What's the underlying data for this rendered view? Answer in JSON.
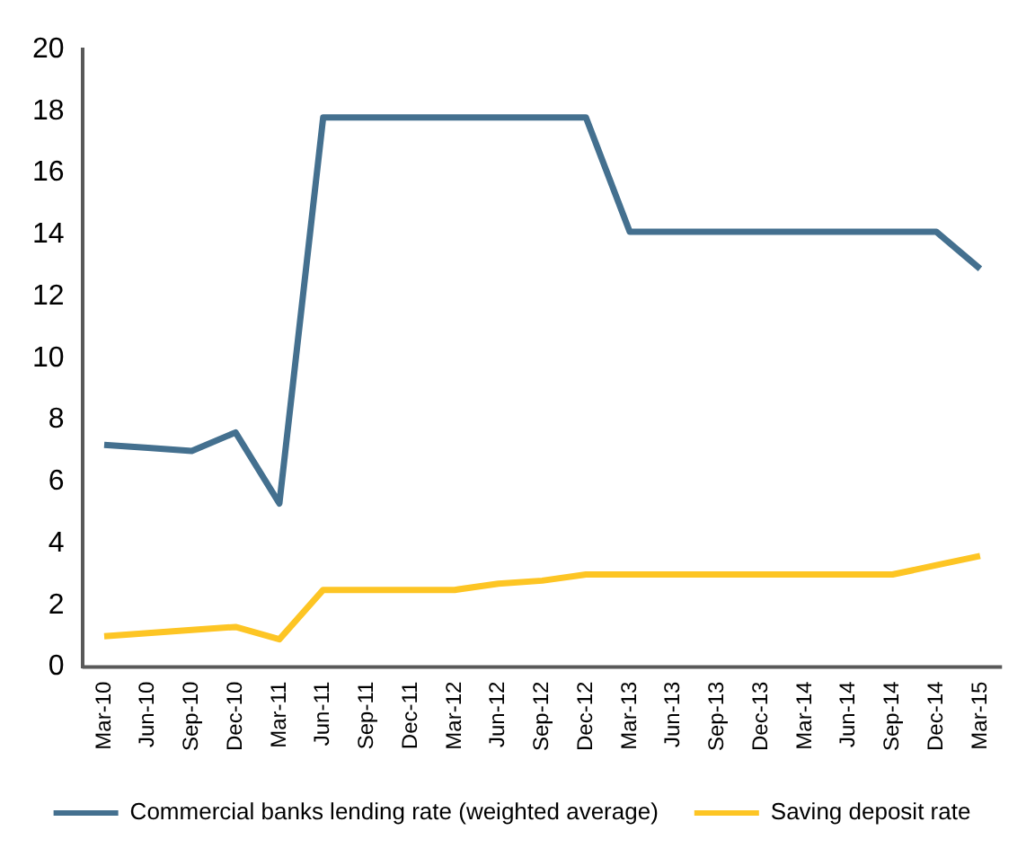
{
  "chart_data": {
    "type": "line",
    "categories": [
      "Mar-10",
      "Jun-10",
      "Sep-10",
      "Dec-10",
      "Mar-11",
      "Jun-11",
      "Sep-11",
      "Dec-11",
      "Mar-12",
      "Jun-12",
      "Sep-12",
      "Dec-12",
      "Mar-13",
      "Jun-13",
      "Sep-13",
      "Dec-13",
      "Mar-14",
      "Jun-14",
      "Sep-14",
      "Dec-14",
      "Mar-15"
    ],
    "series": [
      {
        "name": "Commercial banks lending rate (weighted average)",
        "color": "#44708f",
        "values": [
          7.2,
          7.1,
          7.0,
          7.6,
          5.3,
          17.8,
          17.8,
          17.8,
          17.8,
          17.8,
          17.8,
          17.8,
          14.1,
          14.1,
          14.1,
          14.1,
          14.1,
          14.1,
          14.1,
          14.1,
          12.9
        ]
      },
      {
        "name": "Saving deposit rate",
        "color": "#fdc524",
        "values": [
          1.0,
          1.1,
          1.2,
          1.3,
          0.9,
          2.5,
          2.5,
          2.5,
          2.5,
          2.7,
          2.8,
          3.0,
          3.0,
          3.0,
          3.0,
          3.0,
          3.0,
          3.0,
          3.0,
          3.3,
          3.6
        ]
      }
    ],
    "ylim": [
      0,
      20
    ],
    "yticks": [
      0,
      2,
      4,
      6,
      8,
      10,
      12,
      14,
      16,
      18,
      20
    ],
    "grid": false,
    "legend": "bottom",
    "marker": "none",
    "line_style": "solid"
  }
}
